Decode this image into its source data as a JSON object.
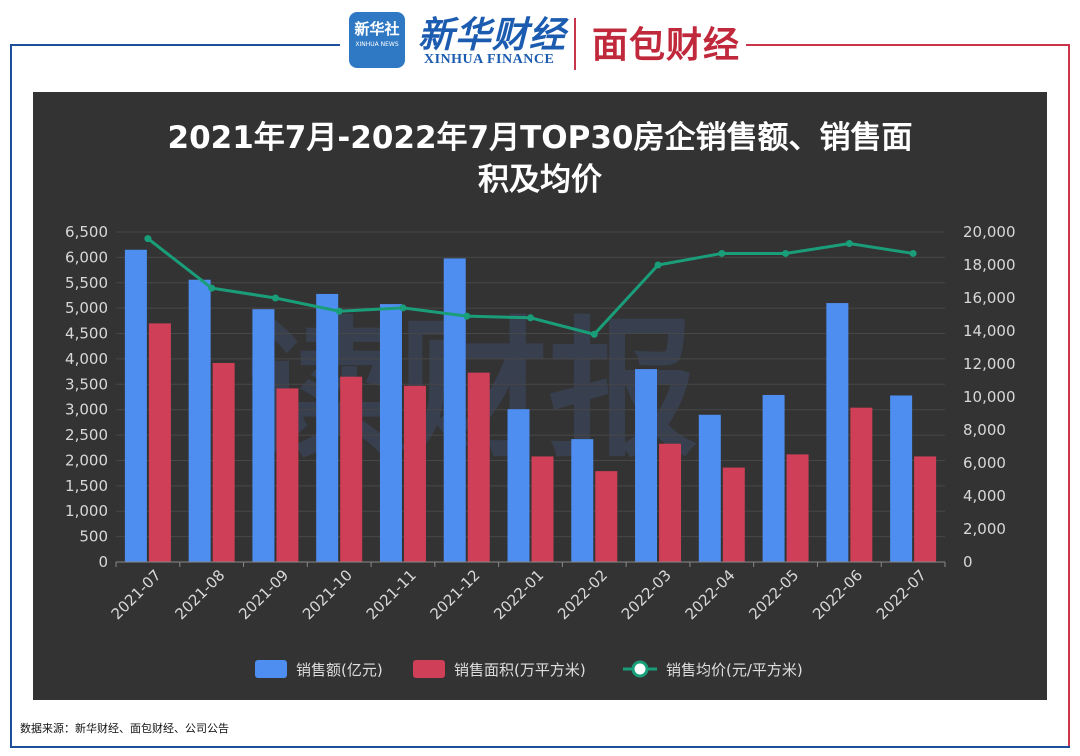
{
  "header": {
    "xinhua_badge": "新华社",
    "xinhua_badge_en": "XINHUA NEWS",
    "xinhua_brand": "新华财经",
    "xinhua_brand_en": "XINHUA FINANCE",
    "mianbao_brand": "面包财经"
  },
  "watermark": "读财报",
  "source": "数据来源：新华财经、面包财经、公司公告",
  "colors": {
    "bar_sales": "#4e8ef0",
    "bar_area": "#cf3f57",
    "line_price": "#1a9e7a",
    "panel_bg": "#333333",
    "brand_red": "#c0283b",
    "brand_blue": "#1b5bb0"
  },
  "chart_data": {
    "type": "bar",
    "title_line1": "2021年7月-2022年7月TOP30房企销售额、销售面",
    "title_line2": "积及均价",
    "categories": [
      "2021-07",
      "2021-08",
      "2021-09",
      "2021-10",
      "2021-11",
      "2021-12",
      "2022-01",
      "2022-02",
      "2022-03",
      "2022-04",
      "2022-05",
      "2022-06",
      "2022-07"
    ],
    "series": [
      {
        "name": "销售额(亿元)",
        "type": "bar",
        "axis": "left",
        "values": [
          6150,
          5560,
          4980,
          5280,
          5080,
          5980,
          3010,
          2420,
          3800,
          2900,
          3290,
          5100,
          3280
        ]
      },
      {
        "name": "销售面积(万平方米)",
        "type": "bar",
        "axis": "left",
        "values": [
          4700,
          3920,
          3420,
          3650,
          3470,
          3730,
          2080,
          1790,
          2330,
          1860,
          2120,
          3040,
          2080
        ]
      },
      {
        "name": "销售均价(元/平方米)",
        "type": "line",
        "axis": "right",
        "values": [
          19600,
          16600,
          16000,
          15200,
          15400,
          14900,
          14800,
          13800,
          18000,
          18700,
          18700,
          19300,
          18700
        ]
      }
    ],
    "y_left": {
      "min": 0,
      "max": 6500,
      "ticks": [
        "0",
        "500",
        "1,000",
        "1,500",
        "2,000",
        "2,500",
        "3,000",
        "3,500",
        "4,000",
        "4,500",
        "5,000",
        "5,500",
        "6,000",
        "6,500"
      ]
    },
    "y_right": {
      "min": 0,
      "max": 20000,
      "ticks": [
        "0",
        "2,000",
        "4,000",
        "6,000",
        "8,000",
        "10,000",
        "12,000",
        "14,000",
        "16,000",
        "18,000",
        "20,000"
      ]
    },
    "grid": true,
    "legend_position": "bottom-center"
  }
}
